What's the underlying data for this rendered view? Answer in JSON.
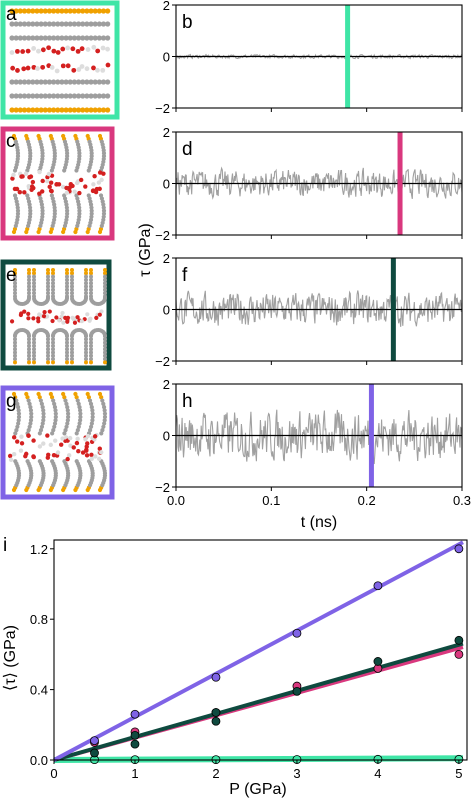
{
  "colors": {
    "b": "#3fe5a6",
    "d": "#d9387e",
    "f": "#0f4a3f",
    "h": "#7f63e6",
    "trace": "#a0a0a0",
    "water": "#d42020",
    "tail_gray": "#9e9e9e",
    "head_orange": "#f0a100"
  },
  "icons": {
    "a": "molecular-snapshot-layered",
    "c": "molecular-snapshot-tilted",
    "e": "molecular-snapshot-u-shaped",
    "g": "molecular-snapshot-tilted-interdigitated"
  },
  "chart_data": [
    {
      "type": "line",
      "panels": [
        {
          "letter": "b",
          "color": "#3fe5a6",
          "amplitude": 0.06,
          "peak": 0.3,
          "marker_t": 0.18,
          "marker_range": [
            -2,
            2
          ]
        },
        {
          "letter": "d",
          "color": "#d9387e",
          "amplitude": 0.45,
          "peak": 1.0,
          "marker_t": 0.235,
          "marker_range": [
            -2,
            2
          ]
        },
        {
          "letter": "f",
          "color": "#0f4a3f",
          "amplitude": 0.55,
          "peak": 1.2,
          "marker_t": 0.228,
          "marker_range": [
            -2,
            2
          ]
        },
        {
          "letter": "h",
          "color": "#7f63e6",
          "amplitude": 0.8,
          "peak": 1.9,
          "marker_t": 0.205,
          "marker_range": [
            -2,
            2
          ]
        }
      ],
      "x_range": [
        0,
        0.3
      ],
      "y_range": [
        -2,
        2
      ],
      "xticks": [
        "0.0",
        "0.1",
        "0.2",
        "0.3"
      ],
      "yticks": [
        "2",
        "0",
        "−2"
      ],
      "xlabel": "t (ns)",
      "ylabel": "τ (GPa)",
      "grid": false
    },
    {
      "type": "scatter",
      "letter": "i",
      "x_range": [
        0,
        5.1
      ],
      "y_range": [
        0,
        1.25
      ],
      "xticks": [
        "0",
        "1",
        "2",
        "3",
        "4",
        "5"
      ],
      "yticks": [
        "0.0",
        "0.4",
        "0.8",
        "1.2"
      ],
      "ytick_values": [
        0,
        0.4,
        0.8,
        1.2
      ],
      "xlabel": "P (GPa)",
      "ylabel": "⟨τ⟩ (GPa)",
      "grid": false,
      "series": [
        {
          "color": "#3fe5a6",
          "slope": 0.002,
          "points": [
            [
              0.5,
              0.002
            ],
            [
              1,
              0.002
            ],
            [
              2,
              0.002
            ],
            [
              3,
              0.003
            ],
            [
              4,
              0.004
            ],
            [
              5,
              0.004
            ]
          ]
        },
        {
          "color": "#d9387e",
          "slope": 0.127,
          "points": [
            [
              0.5,
              0.1
            ],
            [
              1,
              0.16
            ],
            [
              2,
              0.27
            ],
            [
              3,
              0.42
            ],
            [
              4,
              0.52
            ],
            [
              5,
              0.6
            ]
          ]
        },
        {
          "color": "#0f4a3f",
          "slope": 0.131,
          "points": [
            [
              0.5,
              0.04
            ],
            [
              1,
              0.09
            ],
            [
              1,
              0.14
            ],
            [
              2,
              0.22
            ],
            [
              2,
              0.27
            ],
            [
              3,
              0.39
            ],
            [
              4,
              0.56
            ],
            [
              5,
              0.68
            ]
          ]
        },
        {
          "color": "#7f63e6",
          "slope": 0.245,
          "points": [
            [
              0.5,
              0.11
            ],
            [
              1,
              0.26
            ],
            [
              2,
              0.47
            ],
            [
              3,
              0.72
            ],
            [
              4,
              0.99
            ],
            [
              5,
              1.2
            ]
          ]
        }
      ]
    }
  ]
}
